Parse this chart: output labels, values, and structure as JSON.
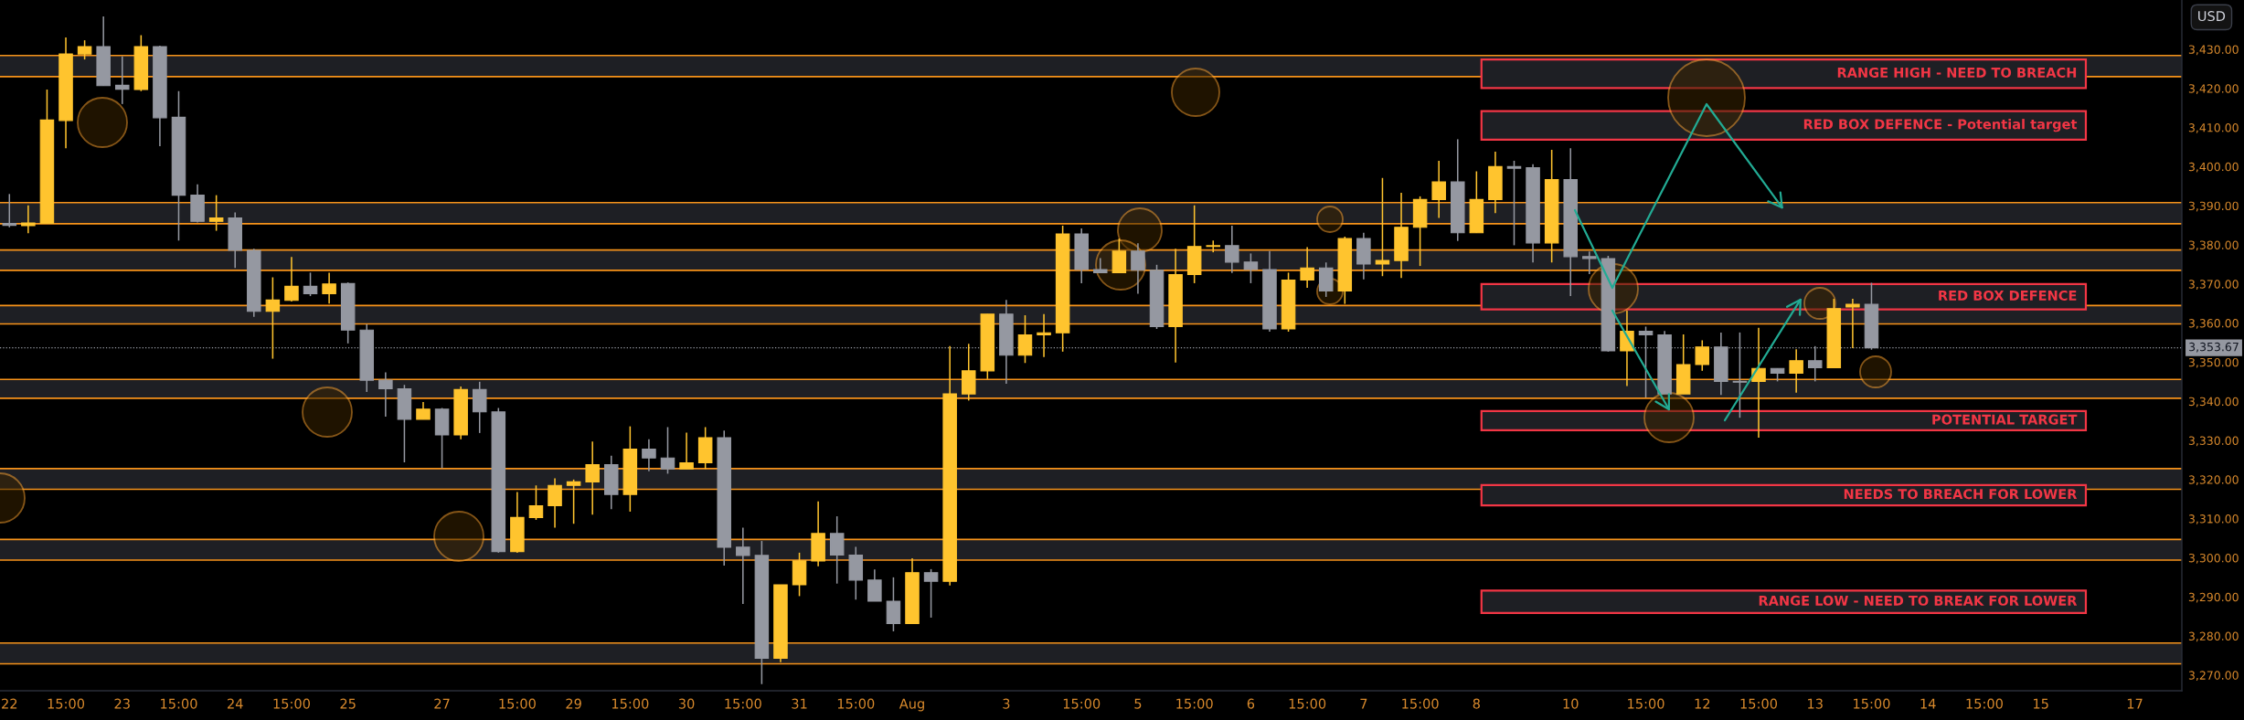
{
  "chart_data": {
    "type": "candlestick",
    "categories": [
      "22",
      null,
      null,
      "15:00",
      null,
      null,
      "23",
      null,
      null,
      "15:00",
      null,
      null,
      "24",
      null,
      null,
      "15:00",
      null,
      null,
      "25",
      null,
      null,
      null,
      null,
      "27",
      null,
      null,
      null,
      "15:00",
      null,
      null,
      "29",
      null,
      null,
      "15:00",
      null,
      null,
      "30",
      null,
      null,
      "15:00",
      null,
      null,
      "31",
      null,
      null,
      "15:00",
      null,
      null,
      "Aug",
      null,
      null,
      null,
      null,
      "3",
      null,
      null,
      null,
      "15:00",
      null,
      null,
      "5",
      null,
      null,
      "15:00",
      null,
      null,
      "6",
      null,
      null,
      "15:00",
      null,
      null,
      "7",
      null,
      null,
      "15:00",
      null,
      null,
      "8",
      null,
      null,
      null,
      null,
      "10",
      null,
      null,
      null,
      "15:00",
      null,
      null,
      "12",
      null,
      null,
      "15:00",
      null,
      null,
      "13",
      null,
      null,
      "15:00",
      null,
      null,
      "14",
      null,
      null,
      "15:00",
      null,
      null,
      "15",
      null,
      null,
      null,
      null,
      "17",
      null,
      null
    ],
    "ohlc": [
      [
        3385.5,
        3393.0,
        3384.5,
        3385.0
      ],
      [
        3384.9,
        3390.1,
        3383.0,
        3385.6
      ],
      [
        3385.5,
        3419.7,
        3385.5,
        3411.9
      ],
      [
        3411.8,
        3433.0,
        3404.7,
        3428.8
      ],
      [
        3428.8,
        3432.3,
        3427.4,
        3430.7
      ],
      [
        3430.7,
        3438.4,
        3420.7,
        3420.7
      ],
      [
        3420.8,
        3428.2,
        3416.0,
        3419.8
      ],
      [
        3419.7,
        3433.6,
        3419.3,
        3430.7
      ],
      [
        3430.7,
        3430.9,
        3405.2,
        3412.5
      ],
      [
        3412.6,
        3419.3,
        3381.1,
        3392.7
      ],
      [
        3392.7,
        3395.5,
        3385.7,
        3386.0
      ],
      [
        3386.0,
        3392.7,
        3383.6,
        3386.9
      ],
      [
        3386.9,
        3388.3,
        3374.1,
        3378.6
      ],
      [
        3378.6,
        3379.0,
        3361.6,
        3363.0
      ],
      [
        3363.0,
        3371.7,
        3350.9,
        3365.9
      ],
      [
        3365.8,
        3376.9,
        3365.5,
        3369.4
      ],
      [
        3369.4,
        3372.9,
        3366.9,
        3367.5
      ],
      [
        3367.5,
        3372.9,
        3365.0,
        3370.0
      ],
      [
        3370.1,
        3370.4,
        3354.8,
        3358.2
      ],
      [
        3358.2,
        3359.7,
        3342.4,
        3345.4
      ],
      [
        3345.4,
        3347.4,
        3336.1,
        3343.2
      ],
      [
        3343.2,
        3344.2,
        3324.4,
        3335.4
      ],
      [
        3335.4,
        3339.8,
        3335.4,
        3338.0
      ],
      [
        3338.0,
        3338.3,
        3322.9,
        3331.4
      ],
      [
        3331.4,
        3343.8,
        3330.3,
        3343.0
      ],
      [
        3343.0,
        3345.0,
        3331.9,
        3337.3
      ],
      [
        3337.3,
        3338.3,
        3301.3,
        3301.6
      ],
      [
        3301.6,
        3316.8,
        3301.3,
        3310.3
      ],
      [
        3310.3,
        3318.5,
        3309.7,
        3313.3
      ],
      [
        3313.3,
        3320.3,
        3307.7,
        3318.5
      ],
      [
        3318.5,
        3320.0,
        3308.7,
        3319.4
      ],
      [
        3319.4,
        3329.7,
        3311.0,
        3323.8
      ],
      [
        3323.8,
        3326.1,
        3312.4,
        3316.2
      ],
      [
        3316.2,
        3333.6,
        3311.8,
        3327.8
      ],
      [
        3327.8,
        3330.3,
        3322.1,
        3325.5
      ],
      [
        3325.5,
        3333.4,
        3321.5,
        3322.7
      ],
      [
        3322.7,
        3332.0,
        3322.7,
        3324.3
      ],
      [
        3324.3,
        3333.4,
        3322.7,
        3330.7
      ],
      [
        3330.7,
        3332.5,
        3298.0,
        3302.7
      ],
      [
        3302.7,
        3307.7,
        3288.2,
        3300.6
      ],
      [
        3300.6,
        3304.3,
        3267.7,
        3274.3
      ],
      [
        3274.3,
        3293.1,
        3273.3,
        3293.1
      ],
      [
        3293.1,
        3301.3,
        3290.2,
        3299.2
      ],
      [
        3299.2,
        3314.4,
        3297.8,
        3306.2
      ],
      [
        3306.2,
        3310.6,
        3293.4,
        3300.7
      ],
      [
        3300.7,
        3302.8,
        3289.3,
        3294.3
      ],
      [
        3294.3,
        3297.0,
        3288.9,
        3288.9
      ],
      [
        3288.9,
        3295.0,
        3281.2,
        3283.2
      ],
      [
        3283.2,
        3299.9,
        3283.2,
        3296.2
      ],
      [
        3296.2,
        3297.1,
        3284.7,
        3294.0
      ],
      [
        3294.0,
        3354.1,
        3292.9,
        3341.9
      ],
      [
        3341.9,
        3354.7,
        3340.2,
        3347.8
      ],
      [
        3347.8,
        3362.3,
        3345.7,
        3362.3
      ],
      [
        3362.3,
        3365.9,
        3344.5,
        3351.8
      ],
      [
        3351.8,
        3362.0,
        3349.8,
        3357.0
      ],
      [
        3357.0,
        3362.3,
        3351.3,
        3357.5
      ],
      [
        3357.5,
        3384.9,
        3352.7,
        3382.8
      ],
      [
        3382.8,
        3384.2,
        3370.2,
        3373.7
      ],
      [
        3373.7,
        3376.6,
        3372.9,
        3372.9
      ],
      [
        3372.9,
        3381.6,
        3372.9,
        3378.4
      ],
      [
        3378.4,
        3380.4,
        3367.5,
        3373.5
      ],
      [
        3373.5,
        3374.9,
        3358.5,
        3359.1
      ],
      [
        3359.1,
        3379.0,
        3349.9,
        3372.4
      ],
      [
        3372.4,
        3390.1,
        3370.2,
        3379.6
      ],
      [
        3379.6,
        3381.1,
        3378.1,
        3379.8
      ],
      [
        3379.8,
        3384.9,
        3372.8,
        3375.6
      ],
      [
        3375.6,
        3377.8,
        3370.2,
        3373.7
      ],
      [
        3373.7,
        3378.4,
        3357.8,
        3358.5
      ],
      [
        3358.5,
        3372.9,
        3357.8,
        3371.0
      ],
      [
        3371.0,
        3379.4,
        3369.0,
        3374.1
      ],
      [
        3374.1,
        3375.5,
        3366.7,
        3368.2
      ],
      [
        3368.2,
        3382.1,
        3364.9,
        3381.6
      ],
      [
        3381.6,
        3383.1,
        3371.2,
        3375.1
      ],
      [
        3375.1,
        3397.1,
        3372.0,
        3376.0
      ],
      [
        3376.0,
        3393.3,
        3371.5,
        3384.5
      ],
      [
        3384.5,
        3392.4,
        3374.6,
        3391.6
      ],
      [
        3391.6,
        3401.5,
        3386.9,
        3396.1
      ],
      [
        3396.1,
        3407.0,
        3381.0,
        3383.1
      ],
      [
        3383.1,
        3398.8,
        3383.1,
        3391.6
      ],
      [
        3391.6,
        3403.8,
        3388.1,
        3400.0
      ],
      [
        3400.0,
        3401.5,
        3379.9,
        3399.6
      ],
      [
        3399.7,
        3400.6,
        3375.5,
        3380.5
      ],
      [
        3380.5,
        3404.3,
        3375.5,
        3396.7
      ],
      [
        3396.7,
        3404.7,
        3366.9,
        3377.0
      ],
      [
        3377.0,
        3378.3,
        3372.5,
        3376.5
      ],
      [
        3376.5,
        3377.2,
        3352.7,
        3352.9
      ],
      [
        3352.9,
        3363.2,
        3343.9,
        3357.9
      ],
      [
        3357.9,
        3359.1,
        3341.0,
        3357.0
      ],
      [
        3357.0,
        3358.0,
        3341.9,
        3341.9
      ],
      [
        3341.9,
        3357.1,
        3341.9,
        3349.4
      ],
      [
        3349.4,
        3355.6,
        3347.8,
        3353.9
      ],
      [
        3353.9,
        3357.6,
        3341.6,
        3345.1
      ],
      [
        3345.1,
        3357.6,
        3335.8,
        3344.9
      ],
      [
        3345.1,
        3358.8,
        3330.7,
        3348.4
      ],
      [
        3348.4,
        3348.4,
        3345.1,
        3347.2
      ],
      [
        3347.2,
        3353.3,
        3342.2,
        3350.4
      ],
      [
        3350.4,
        3354.1,
        3345.1,
        3348.6
      ],
      [
        3348.6,
        3366.2,
        3348.6,
        3363.7
      ],
      [
        3364.1,
        3366.2,
        3353.6,
        3364.8
      ],
      [
        3364.8,
        3370.3,
        3353.2,
        3353.7
      ],
      null,
      null,
      null,
      null,
      null,
      null,
      null,
      null,
      null,
      null,
      null,
      null,
      null,
      null,
      null,
      null
    ],
    "colors": [
      "#9598a1",
      "#ffc42e",
      "#ffc42e",
      "#ffc42e",
      "#ffc42e",
      "#9598a1",
      "#9598a1",
      "#ffc42e",
      "#9598a1",
      "#9598a1",
      "#9598a1",
      "#ffc42e",
      "#9598a1",
      "#9598a1",
      "#ffc42e",
      "#ffc42e",
      "#9598a1",
      "#ffc42e",
      "#9598a1",
      "#9598a1",
      "#9598a1",
      "#9598a1",
      "#ffc42e",
      "#9598a1",
      "#ffc42e",
      "#9598a1",
      "#9598a1",
      "#ffc42e",
      "#ffc42e",
      "#ffc42e",
      "#ffc42e",
      "#ffc42e",
      "#9598a1",
      "#ffc42e",
      "#9598a1",
      "#9598a1",
      "#ffc42e",
      "#ffc42e",
      "#9598a1",
      "#9598a1",
      "#9598a1",
      "#ffc42e",
      "#ffc42e",
      "#ffc42e",
      "#9598a1",
      "#9598a1",
      "#9598a1",
      "#9598a1",
      "#ffc42e",
      "#9598a1",
      "#ffc42e",
      "#ffc42e",
      "#ffc42e",
      "#9598a1",
      "#ffc42e",
      "#ffc42e",
      "#ffc42e",
      "#9598a1",
      "#9598a1",
      "#ffc42e",
      "#9598a1",
      "#9598a1",
      "#ffc42e",
      "#ffc42e",
      "#ffc42e",
      "#9598a1",
      "#9598a1",
      "#9598a1",
      "#ffc42e",
      "#ffc42e",
      "#9598a1",
      "#ffc42e",
      "#9598a1",
      "#ffc42e",
      "#ffc42e",
      "#ffc42e",
      "#ffc42e",
      "#9598a1",
      "#ffc42e",
      "#ffc42e",
      "#9598a1",
      "#9598a1",
      "#ffc42e",
      "#9598a1",
      "#9598a1",
      "#9598a1",
      "#ffc42e",
      "#9598a1",
      "#9598a1",
      "#ffc42e",
      "#ffc42e",
      "#9598a1",
      "#9598a1",
      "#ffc42e",
      "#9598a1",
      "#ffc42e",
      "#9598a1",
      "#ffc42e",
      "#ffc42e",
      "#9598a1",
      null,
      null,
      null,
      null,
      null,
      null,
      null,
      null,
      null,
      null,
      null,
      null,
      null,
      null,
      null,
      null
    ],
    "ylim": [
      3266.0,
      3442.6
    ],
    "yticks": [
      {
        "value": 3270,
        "label": "3,270.00"
      },
      {
        "value": 3280,
        "label": "3,280.00"
      },
      {
        "value": 3290,
        "label": "3,290.00"
      },
      {
        "value": 3300,
        "label": "3,300.00"
      },
      {
        "value": 3310,
        "label": "3,310.00"
      },
      {
        "value": 3320,
        "label": "3,320.00"
      },
      {
        "value": 3330,
        "label": "3,330.00"
      },
      {
        "value": 3340,
        "label": "3,340.00"
      },
      {
        "value": 3350,
        "label": "3,350.00"
      },
      {
        "value": 3360,
        "label": "3,360.00"
      },
      {
        "value": 3370,
        "label": "3,370.00"
      },
      {
        "value": 3380,
        "label": "3,380.00"
      },
      {
        "value": 3390,
        "label": "3,390.00"
      },
      {
        "value": 3400,
        "label": "3,400.00"
      },
      {
        "value": 3410,
        "label": "3,410.00"
      },
      {
        "value": 3420,
        "label": "3,420.00"
      },
      {
        "value": 3430,
        "label": "3,430.00"
      }
    ],
    "bands": [
      {
        "axis": "y",
        "from": 3423.0,
        "to": 3428.4,
        "color": "#f7931a"
      },
      {
        "axis": "y",
        "from": 3385.4,
        "to": 3390.8,
        "color": "#f7931a"
      },
      {
        "axis": "y",
        "from": 3373.5,
        "to": 3378.7,
        "color": "#f7931a"
      },
      {
        "axis": "y",
        "from": 3359.8,
        "to": 3364.5,
        "color": "#f7931a"
      },
      {
        "axis": "y",
        "from": 3340.8,
        "to": 3345.6,
        "color": "#f7931a"
      },
      {
        "axis": "y",
        "from": 3317.5,
        "to": 3322.8,
        "color": "#f7931a"
      },
      {
        "axis": "y",
        "from": 3299.4,
        "to": 3304.7,
        "color": "#f7931a"
      },
      {
        "axis": "y",
        "from": 3272.9,
        "to": 3278.2,
        "color": "#f7931a"
      },
      {
        "axis": "y",
        "from": 3420.1,
        "to": 3427.4,
        "label": "RANGE HIGH - NEED TO BREACH",
        "color": "#f23645"
      },
      {
        "axis": "y",
        "from": 3406.9,
        "to": 3414.2,
        "label": "RED BOX DEFENCE - Potential target",
        "color": "#f23645"
      },
      {
        "axis": "y",
        "from": 3363.5,
        "to": 3370.0,
        "label": "RED BOX DEFENCE",
        "color": "#f23645"
      },
      {
        "axis": "y",
        "from": 3332.6,
        "to": 3337.5,
        "label": "POTENTIAL TARGET",
        "color": "#f23645"
      },
      {
        "axis": "y",
        "from": 3313.4,
        "to": 3318.6,
        "label": "NEEDS TO BREACH FOR LOWER",
        "color": "#f23645"
      },
      {
        "axis": "y",
        "from": 3285.9,
        "to": 3291.6,
        "label": "RANGE LOW - NEED TO BREAK FOR LOWER",
        "color": "#f23645"
      }
    ],
    "ref_lines": [
      {
        "axis": "y",
        "value": 3353.67,
        "label": "3,353.67",
        "color": "#9598a1",
        "line_style": "dotted"
      }
    ],
    "annotations": [
      "USD"
    ],
    "grid": false,
    "legend": false
  }
}
